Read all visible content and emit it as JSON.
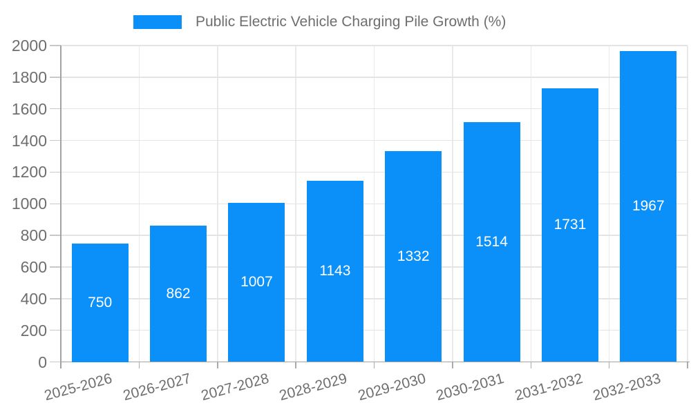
{
  "legend": {
    "label": "Public Electric Vehicle Charging Pile Growth (%)"
  },
  "chart_data": {
    "type": "bar",
    "title": "Public Electric Vehicle Charging Pile Growth (%)",
    "series_name": "Public Electric Vehicle Charging Pile Growth (%)",
    "categories": [
      "2025-2026",
      "2026-2027",
      "2027-2028",
      "2028-2029",
      "2029-2030",
      "2030-2031",
      "2031-2032",
      "2032-2033"
    ],
    "values": [
      750,
      862,
      1007,
      1143,
      1332,
      1514,
      1731,
      1967
    ],
    "xlabel": "",
    "ylabel": "",
    "ylim": [
      0,
      2000
    ],
    "yticks": [
      0,
      200,
      400,
      600,
      800,
      1000,
      1200,
      1400,
      1600,
      1800,
      2000
    ],
    "grid": true,
    "legend_position": "top",
    "xtick_rotation_deg": 15,
    "bar_color": "#0b90fa",
    "value_label_color": "#ffffff",
    "axis_text_color": "#6e6e6e"
  }
}
